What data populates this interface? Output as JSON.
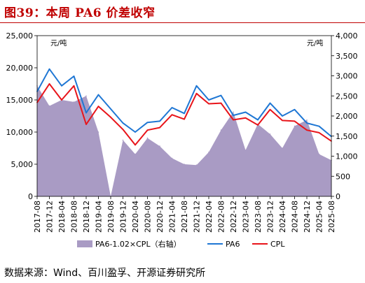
{
  "page": {
    "title": "图39：本周 PA6 价差收窄",
    "source": "数据来源：Wind、百川盈孚、开源证券研究所"
  },
  "chart_data": {
    "type": "line",
    "left_unit": "元/吨",
    "right_unit": "元/吨",
    "left_axis": {
      "min": 0,
      "max": 25000,
      "ticks": [
        "0",
        "5,000",
        "10,000",
        "15,000",
        "20,000",
        "25,000"
      ]
    },
    "right_axis": {
      "min": 0,
      "max": 4000,
      "ticks": [
        "0",
        "500",
        "1,000",
        "1,500",
        "2,000",
        "2,500",
        "3,000",
        "3,500",
        "4,000"
      ]
    },
    "x_labels": [
      "2017-08",
      "2017-12",
      "2018-04",
      "2018-08",
      "2018-12",
      "2019-04",
      "2019-08",
      "2019-12",
      "2020-04",
      "2020-08",
      "2020-12",
      "2021-04",
      "2021-08",
      "2021-12",
      "2022-04",
      "2022-08",
      "2022-12",
      "2023-04",
      "2023-08",
      "2023-12",
      "2024-04",
      "2024-08",
      "2024-12",
      "2025-04",
      "2025-08"
    ],
    "legend_position": "bottom",
    "grid": false,
    "series": [
      {
        "name": "PA6-1.02×CPL（右轴）",
        "type": "area",
        "axis": "right",
        "color": "#a99bc4",
        "values": [
          2750,
          2250,
          2400,
          2350,
          2500,
          1600,
          0,
          1400,
          1050,
          1450,
          1250,
          950,
          800,
          780,
          1100,
          1650,
          2100,
          1150,
          1800,
          1550,
          1200,
          1750,
          1900,
          1050,
          900
        ]
      },
      {
        "name": "PA6",
        "type": "line",
        "axis": "left",
        "color": "#1f77d4",
        "values": [
          16300,
          19800,
          17200,
          18700,
          13000,
          15800,
          13600,
          11400,
          10000,
          11500,
          11700,
          13800,
          12900,
          17200,
          15000,
          15700,
          12600,
          13100,
          11900,
          14500,
          12500,
          13500,
          11400,
          10900,
          9300
        ]
      },
      {
        "name": "CPL",
        "type": "line",
        "axis": "left",
        "color": "#e8141a",
        "values": [
          14600,
          17500,
          15000,
          17200,
          11200,
          14000,
          12300,
          10400,
          8000,
          10300,
          10700,
          12700,
          12000,
          16000,
          14400,
          14500,
          11900,
          12200,
          11100,
          13500,
          11800,
          11700,
          10300,
          9900,
          8600
        ]
      }
    ]
  }
}
